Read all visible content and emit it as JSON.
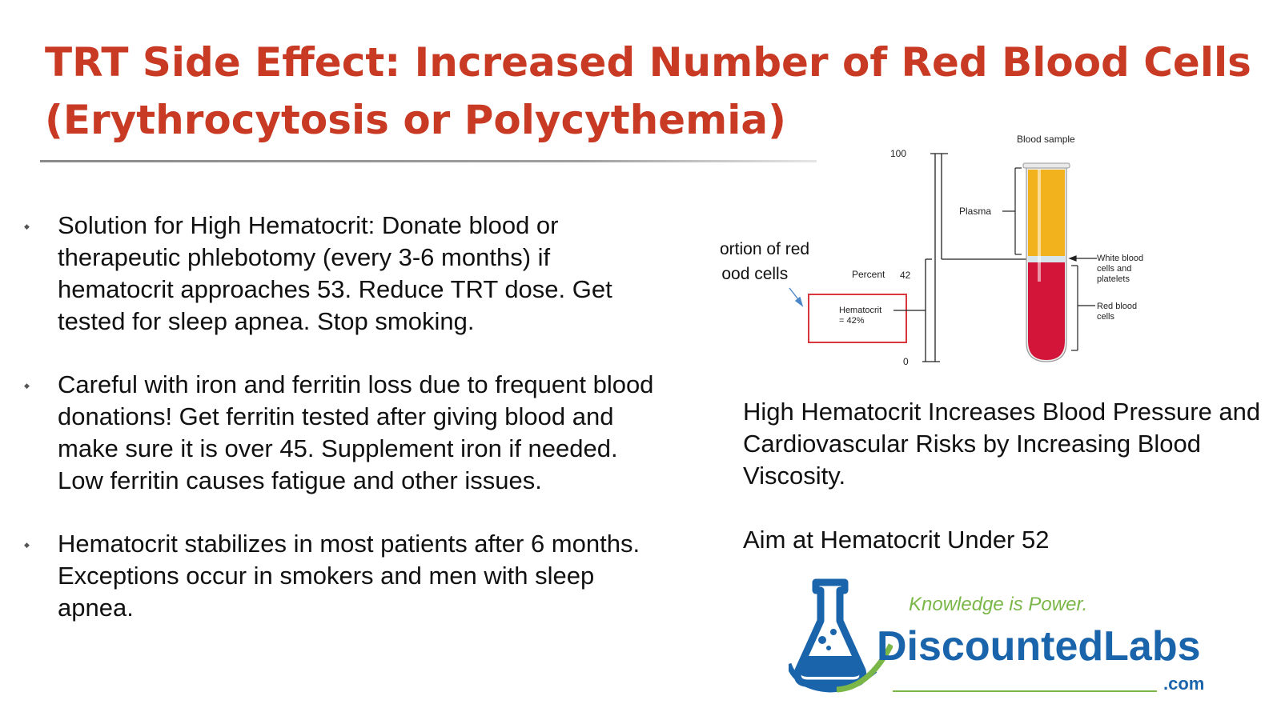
{
  "slide": {
    "title_line1": "TRT Side Effect: Increased Number of Red Blood Cells",
    "title_line2": "(Erythrocytosis or Polycythemia)"
  },
  "bullets": [
    "Solution for High Hematocrit:  Donate blood or therapeutic phlebotomy (every 3-6 months) if hematocrit approaches 53. Reduce TRT dose.  Get  tested for sleep apnea. Stop smoking.",
    "Careful with iron and ferritin loss due to frequent blood donations! Get ferritin tested after giving blood and make sure it is over 45. Supplement iron if needed. Low ferritin causes fatigue and other issues.",
    "Hematocrit stabilizes in most patients after 6 months. Exceptions occur in smokers and men with sleep apnea."
  ],
  "diagram": {
    "blood_sample_label": "Blood sample",
    "scale_top": "100",
    "scale_bottom": "0",
    "percent_label": "Percent",
    "percent_value": "42",
    "plasma_label": "Plasma",
    "wbc_line1": "White blood",
    "wbc_line2": "cells and",
    "wbc_line3": "platelets",
    "rbc_line1": "Red blood",
    "rbc_line2": "cells",
    "portion_line1": "Portion of red",
    "portion_line2": "blood cells",
    "hematocrit_line1": "Hematocrit",
    "hematocrit_line2": "= 42%",
    "hematocrit_fraction": 0.42,
    "colors": {
      "plasma": "#f2b21e",
      "rbc": "#d4153a",
      "box": "#d9363e",
      "arrow": "#4a86c8"
    }
  },
  "right": {
    "statement": "High Hematocrit Increases Blood Pressure and Cardiovascular Risks by Increasing Blood Viscosity.",
    "aim": "Aim at Hematocrit Under 52"
  },
  "logo": {
    "tagline": "Knowledge is Power.",
    "brand": "DiscountedLabs",
    "domain": ".com",
    "colors": {
      "blue": "#1a64ab",
      "green": "#7ab648"
    }
  },
  "colors": {
    "title": "#c83a24",
    "text": "#111111"
  }
}
